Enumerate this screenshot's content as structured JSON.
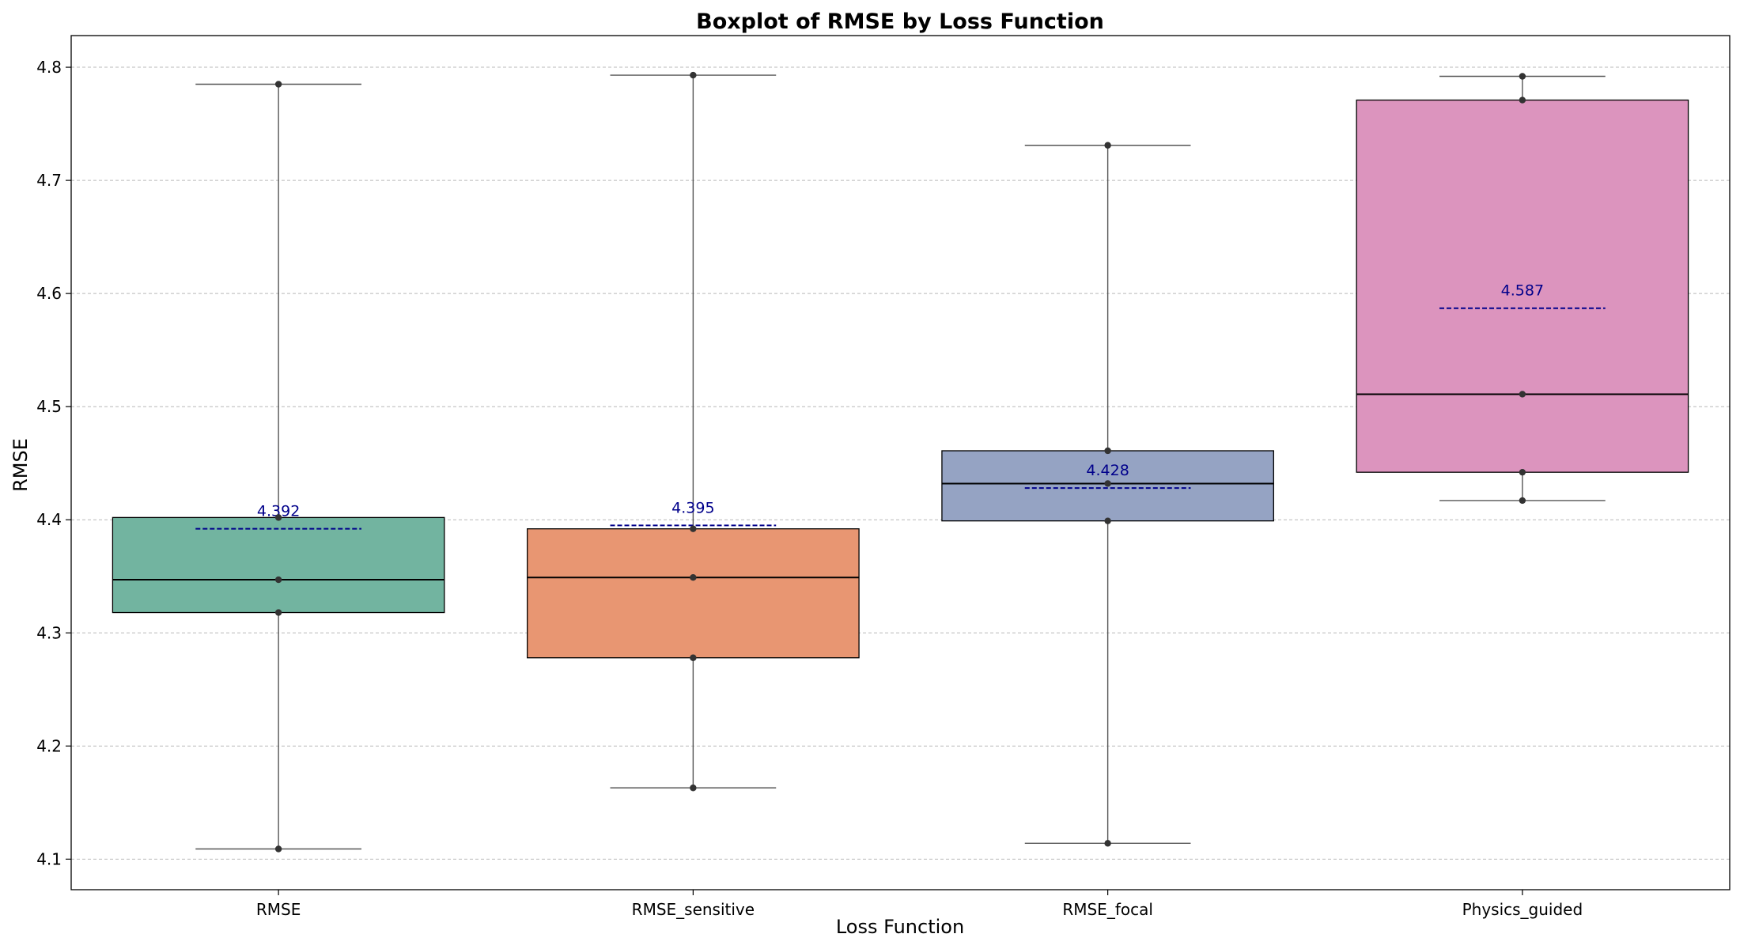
{
  "chart_data": {
    "type": "box",
    "title": "Boxplot of RMSE by Loss Function",
    "xlabel": "Loss Function",
    "ylabel": "RMSE",
    "ylim": [
      4.073,
      4.828
    ],
    "yticks": [
      4.1,
      4.2,
      4.3,
      4.4,
      4.5,
      4.6,
      4.7,
      4.8
    ],
    "ytick_labels": [
      "4.1",
      "4.2",
      "4.3",
      "4.4",
      "4.5",
      "4.6",
      "4.7",
      "4.8"
    ],
    "grid": "y-dashed",
    "categories": [
      "RMSE",
      "RMSE_sensitive",
      "RMSE_focal",
      "Physics_guided"
    ],
    "colors": [
      "#72b4a0",
      "#e89672",
      "#95a3c3",
      "#dc94be"
    ],
    "mean_color": "#00008b",
    "boxes": [
      {
        "name": "RMSE",
        "whisker_low": 4.109,
        "q1": 4.318,
        "median": 4.347,
        "q3": 4.402,
        "whisker_high": 4.785,
        "mean": 4.392,
        "mean_label": "4.392",
        "points": [
          4.109,
          4.318,
          4.347,
          4.402,
          4.785
        ]
      },
      {
        "name": "RMSE_sensitive",
        "whisker_low": 4.163,
        "q1": 4.278,
        "median": 4.349,
        "q3": 4.392,
        "whisker_high": 4.793,
        "mean": 4.395,
        "mean_label": "4.395",
        "points": [
          4.163,
          4.278,
          4.349,
          4.392,
          4.793
        ]
      },
      {
        "name": "RMSE_focal",
        "whisker_low": 4.114,
        "q1": 4.399,
        "median": 4.432,
        "q3": 4.461,
        "whisker_high": 4.731,
        "mean": 4.428,
        "mean_label": "4.428",
        "points": [
          4.114,
          4.399,
          4.432,
          4.461,
          4.731
        ]
      },
      {
        "name": "Physics_guided",
        "whisker_low": 4.417,
        "q1": 4.442,
        "median": 4.511,
        "q3": 4.771,
        "whisker_high": 4.792,
        "mean": 4.587,
        "mean_label": "4.587",
        "points": [
          4.417,
          4.442,
          4.511,
          4.771,
          4.792
        ]
      }
    ]
  }
}
